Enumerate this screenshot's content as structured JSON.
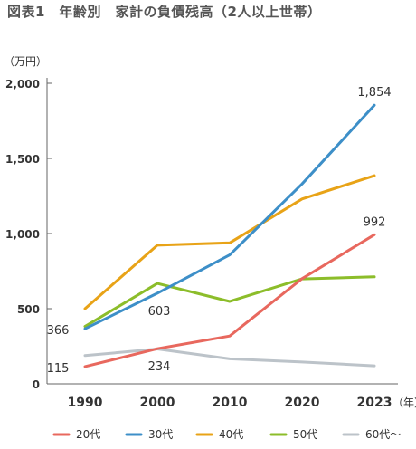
{
  "title": "図表1　年齢別　家計の負債残高（2人以上世帯）",
  "chart_data": {
    "type": "line",
    "title": "図表1　年齢別　家計の負債残高（2人以上世帯）",
    "ylabel": "（万円）",
    "xunit": "（年）",
    "x": [
      "1990",
      "2000",
      "2010",
      "2020",
      "2023"
    ],
    "ylim": [
      0,
      2000
    ],
    "yticks": [
      "2,000",
      "1,500",
      "1,000",
      "500",
      "0"
    ],
    "ytick_values": [
      2000,
      1500,
      1000,
      500,
      0
    ],
    "grid": false,
    "legend_position": "bottom",
    "series": [
      {
        "name": "20代",
        "color": "#e8685e",
        "values": [
          115,
          234,
          318,
          700,
          992
        ]
      },
      {
        "name": "30代",
        "color": "#3d8fc8",
        "values": [
          366,
          603,
          858,
          1330,
          1854
        ]
      },
      {
        "name": "40代",
        "color": "#e8a317",
        "values": [
          500,
          922,
          938,
          1230,
          1385
        ]
      },
      {
        "name": "50代",
        "color": "#8cbd2a",
        "values": [
          382,
          668,
          548,
          698,
          712
        ]
      },
      {
        "name": "60代〜",
        "color": "#bcc3c9",
        "values": [
          188,
          232,
          166,
          145,
          120
        ]
      }
    ],
    "data_labels": [
      {
        "series": 0,
        "index": 0,
        "text": "115",
        "pos": "left"
      },
      {
        "series": 0,
        "index": 1,
        "text": "234",
        "pos": "below"
      },
      {
        "series": 1,
        "index": 0,
        "text": "366",
        "pos": "left"
      },
      {
        "series": 1,
        "index": 1,
        "text": "603",
        "pos": "below"
      },
      {
        "series": 1,
        "index": 4,
        "text": "1,854",
        "pos": "above"
      },
      {
        "series": 0,
        "index": 4,
        "text": "992",
        "pos": "above"
      }
    ]
  }
}
